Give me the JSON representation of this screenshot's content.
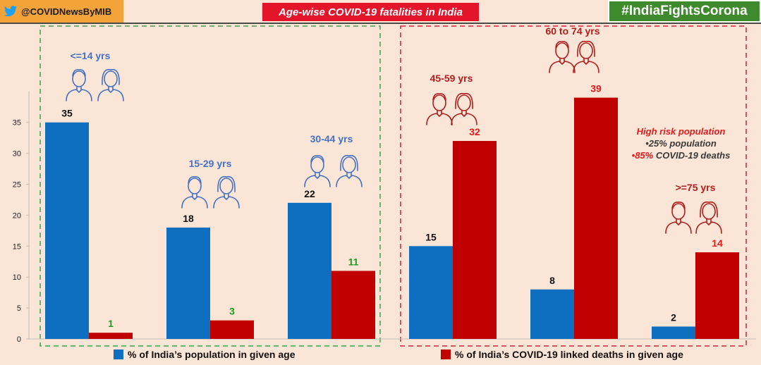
{
  "header": {
    "handle": "@COVIDNewsByMIB",
    "title": "Age-wise COVID-19 fatalities in India",
    "hashtag": "#IndiaFightsCorona"
  },
  "colors": {
    "population": "#0e6fc1",
    "deaths": "#c00000",
    "low_label": "#1e9a1e",
    "high_label": "#e41a1c",
    "age_low": "#4472c4",
    "age_high": "#b01e1e"
  },
  "note": {
    "title": "High risk population",
    "line1": "•25% population",
    "line2_pct": "•85%",
    "line2_rest": " COVID-19 deaths"
  },
  "legend": {
    "population": "% of India’s population in given age",
    "deaths": "% of India’s COVID-19 linked deaths in given age"
  },
  "chart_data": {
    "type": "bar",
    "title": "Age-wise COVID-19 fatalities in India",
    "categories": [
      "<=14 yrs",
      "15-29 yrs",
      "30-44 yrs",
      "45-59 yrs",
      "60 to 74 yrs",
      ">=75 yrs"
    ],
    "series": [
      {
        "name": "% of India’s population in given age",
        "values": [
          35,
          18,
          22,
          15,
          8,
          2
        ]
      },
      {
        "name": "% of India’s COVID-19 linked deaths in given age",
        "values": [
          1,
          3,
          11,
          32,
          39,
          14
        ]
      }
    ],
    "yticks": [
      0,
      5,
      10,
      15,
      20,
      25,
      30,
      35
    ],
    "ylim": [
      0,
      40
    ],
    "xlabel": "",
    "ylabel": "",
    "legend_position": "bottom",
    "annotations": [
      "High risk population",
      "•25% population",
      "•85% COVID-19 deaths"
    ]
  }
}
